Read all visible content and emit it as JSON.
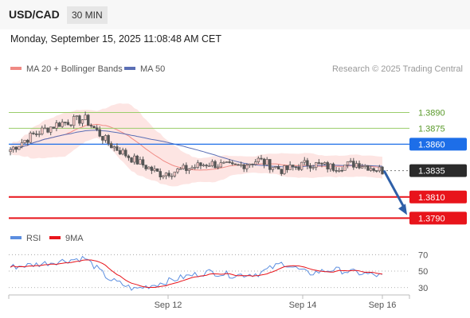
{
  "header": {
    "symbol": "USD/CAD",
    "timeframe": "30 MIN",
    "datetime": "Monday, September 15, 2025 11:08:48 AM CET"
  },
  "legend": {
    "ma20_bb": "MA 20 + Bollinger Bands",
    "ma50": "MA 50",
    "credit": "Research © 2025 Trading Central"
  },
  "rsi_legend": {
    "rsi": "RSI",
    "ma9": "9MA"
  },
  "colors": {
    "bb_fill": "#fde0de",
    "ma20": "#f08a84",
    "ma50": "#5b6fb5",
    "up_candle": "#f7cac8",
    "down_candle": "#555555",
    "green_level": "#9acd6a",
    "blue_level": "#1d6ee8",
    "red_level": "#e8141b",
    "arrow": "#2e5fa8",
    "rsi": "#5b8ee0",
    "rsi_ma": "#e8141b"
  },
  "chart_data": [
    {
      "type": "candlestick",
      "y_range": [
        1.3782,
        1.3925
      ],
      "levels": [
        {
          "value": 1.389,
          "label": "1.3890",
          "style": "green"
        },
        {
          "value": 1.3875,
          "label": "1.3875",
          "style": "green"
        },
        {
          "value": 1.386,
          "label": "1.3860",
          "style": "blue"
        },
        {
          "value": 1.3835,
          "label": "1.3835",
          "style": "dark"
        },
        {
          "value": 1.381,
          "label": "1.3810",
          "style": "red"
        },
        {
          "value": 1.379,
          "label": "1.3790",
          "style": "red"
        }
      ],
      "current_price": 1.3835,
      "projection": {
        "from": 1.3835,
        "to": 1.379
      },
      "x_ticks": [
        "Sep 12",
        "Sep 14",
        "Sep 16"
      ],
      "key_prices": [
        1.3855,
        1.387,
        1.388,
        1.3884,
        1.386,
        1.3845,
        1.3832,
        1.3836,
        1.3842,
        1.3838,
        1.3845,
        1.3835,
        1.3842,
        1.3838,
        1.3842,
        1.3835
      ]
    },
    {
      "type": "line",
      "name": "RSI",
      "y_range": [
        24,
        78
      ],
      "y_ticks": [
        70,
        50,
        30
      ],
      "key_values": [
        55,
        58,
        62,
        66,
        40,
        28,
        35,
        43,
        49,
        45,
        47,
        60,
        47,
        52,
        48,
        44
      ]
    }
  ]
}
